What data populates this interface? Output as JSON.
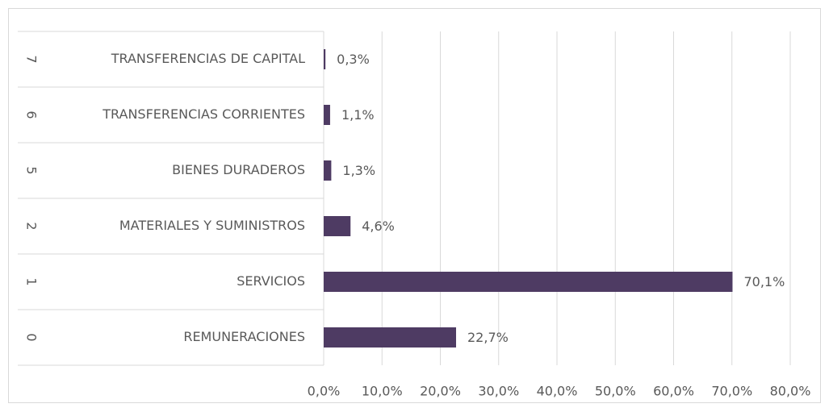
{
  "chart_data": {
    "type": "bar",
    "orientation": "horizontal",
    "codes": [
      "0",
      "1",
      "2",
      "5",
      "6",
      "7"
    ],
    "categories": [
      "REMUNERACIONES",
      "SERVICIOS",
      "MATERIALES Y SUMINISTROS",
      "BIENES DURADEROS",
      "TRANSFERENCIAS CORRIENTES",
      "TRANSFERENCIAS DE CAPITAL"
    ],
    "values": [
      22.7,
      70.1,
      4.6,
      1.3,
      1.1,
      0.3
    ],
    "value_labels": [
      "22,7%",
      "70,1%",
      "4,6%",
      "1,3%",
      "1,1%",
      "0,3%"
    ],
    "color": "#4e3b63",
    "xlim": [
      0,
      80
    ],
    "xticks": [
      {
        "value": 0,
        "label": "0,0%"
      },
      {
        "value": 10,
        "label": "10,0%"
      },
      {
        "value": 20,
        "label": "20,0%"
      },
      {
        "value": 30,
        "label": "30,0%"
      },
      {
        "value": 40,
        "label": "40,0%"
      },
      {
        "value": 50,
        "label": "50,0%"
      },
      {
        "value": 60,
        "label": "60,0%"
      },
      {
        "value": 70,
        "label": "70,0%"
      },
      {
        "value": 80,
        "label": "80,0%"
      }
    ],
    "grid": true
  }
}
